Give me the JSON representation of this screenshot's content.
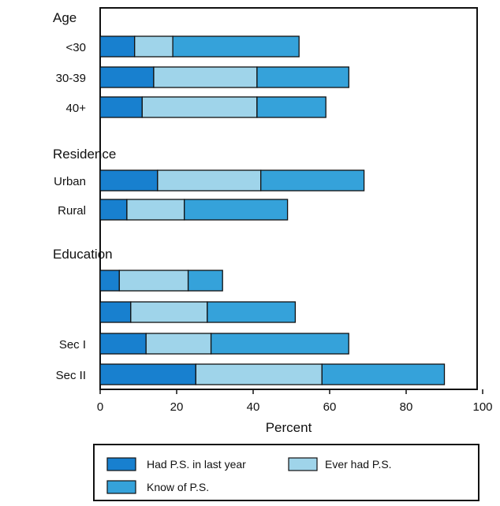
{
  "chart_data": {
    "type": "bar",
    "orientation": "horizontal",
    "stacked": true,
    "xlabel": "Percent",
    "xlim": [
      0,
      100
    ],
    "x_ticks": [
      0,
      20,
      40,
      60,
      80,
      100
    ],
    "groups": [
      {
        "label": "Age",
        "rows": [
          {
            "label": "<30",
            "values": [
              9,
              10,
              33
            ]
          },
          {
            "label": "30-39",
            "values": [
              14,
              27,
              24
            ]
          },
          {
            "label": "40+",
            "values": [
              11,
              30,
              18
            ]
          }
        ]
      },
      {
        "label": "Residence",
        "rows": [
          {
            "label": "Urban",
            "values": [
              15,
              27,
              27
            ]
          },
          {
            "label": "Rural",
            "values": [
              7,
              15,
              27
            ]
          }
        ]
      },
      {
        "label": "Education",
        "rows": [
          {
            "label": "",
            "values": [
              5,
              18,
              9
            ]
          },
          {
            "label": "",
            "values": [
              8,
              20,
              23
            ]
          },
          {
            "label": "Sec I",
            "values": [
              12,
              17,
              36
            ]
          },
          {
            "label": "Sec II",
            "values": [
              25,
              33,
              32
            ]
          }
        ]
      }
    ],
    "series": [
      {
        "name": "Had P.S. in last year",
        "color": "#1880cf"
      },
      {
        "name": "Ever had P.S.",
        "color": "#9fd4ea"
      },
      {
        "name": "Know of P.S.",
        "color": "#35a2da"
      }
    ],
    "legend_position": "bottom",
    "grid": false
  }
}
